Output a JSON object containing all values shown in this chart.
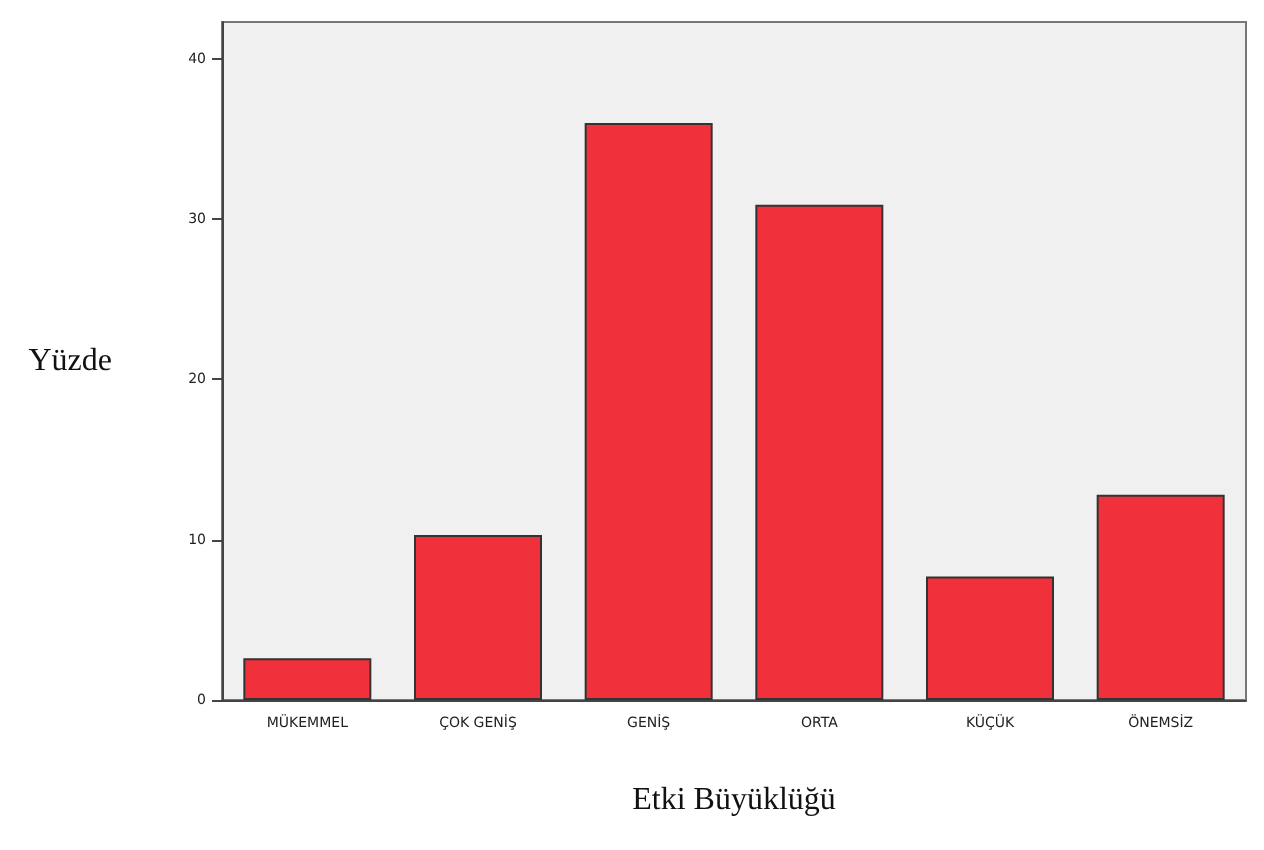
{
  "chart_data": {
    "type": "bar",
    "xlabel": "Etki Büyüklüğü",
    "ylabel": "Yüzde",
    "categories": [
      "MÜKEMMEL",
      "ÇOK GENİŞ",
      "GENİŞ",
      "ORTA",
      "KÜÇÜK",
      "ÖNEMSİZ"
    ],
    "values": [
      2.6,
      10.3,
      36.0,
      30.9,
      7.7,
      12.8
    ],
    "color": "#f0313b",
    "ylim": [
      0,
      42.3
    ],
    "yticks": [
      0,
      10,
      20,
      30,
      40
    ],
    "grid": false
  }
}
